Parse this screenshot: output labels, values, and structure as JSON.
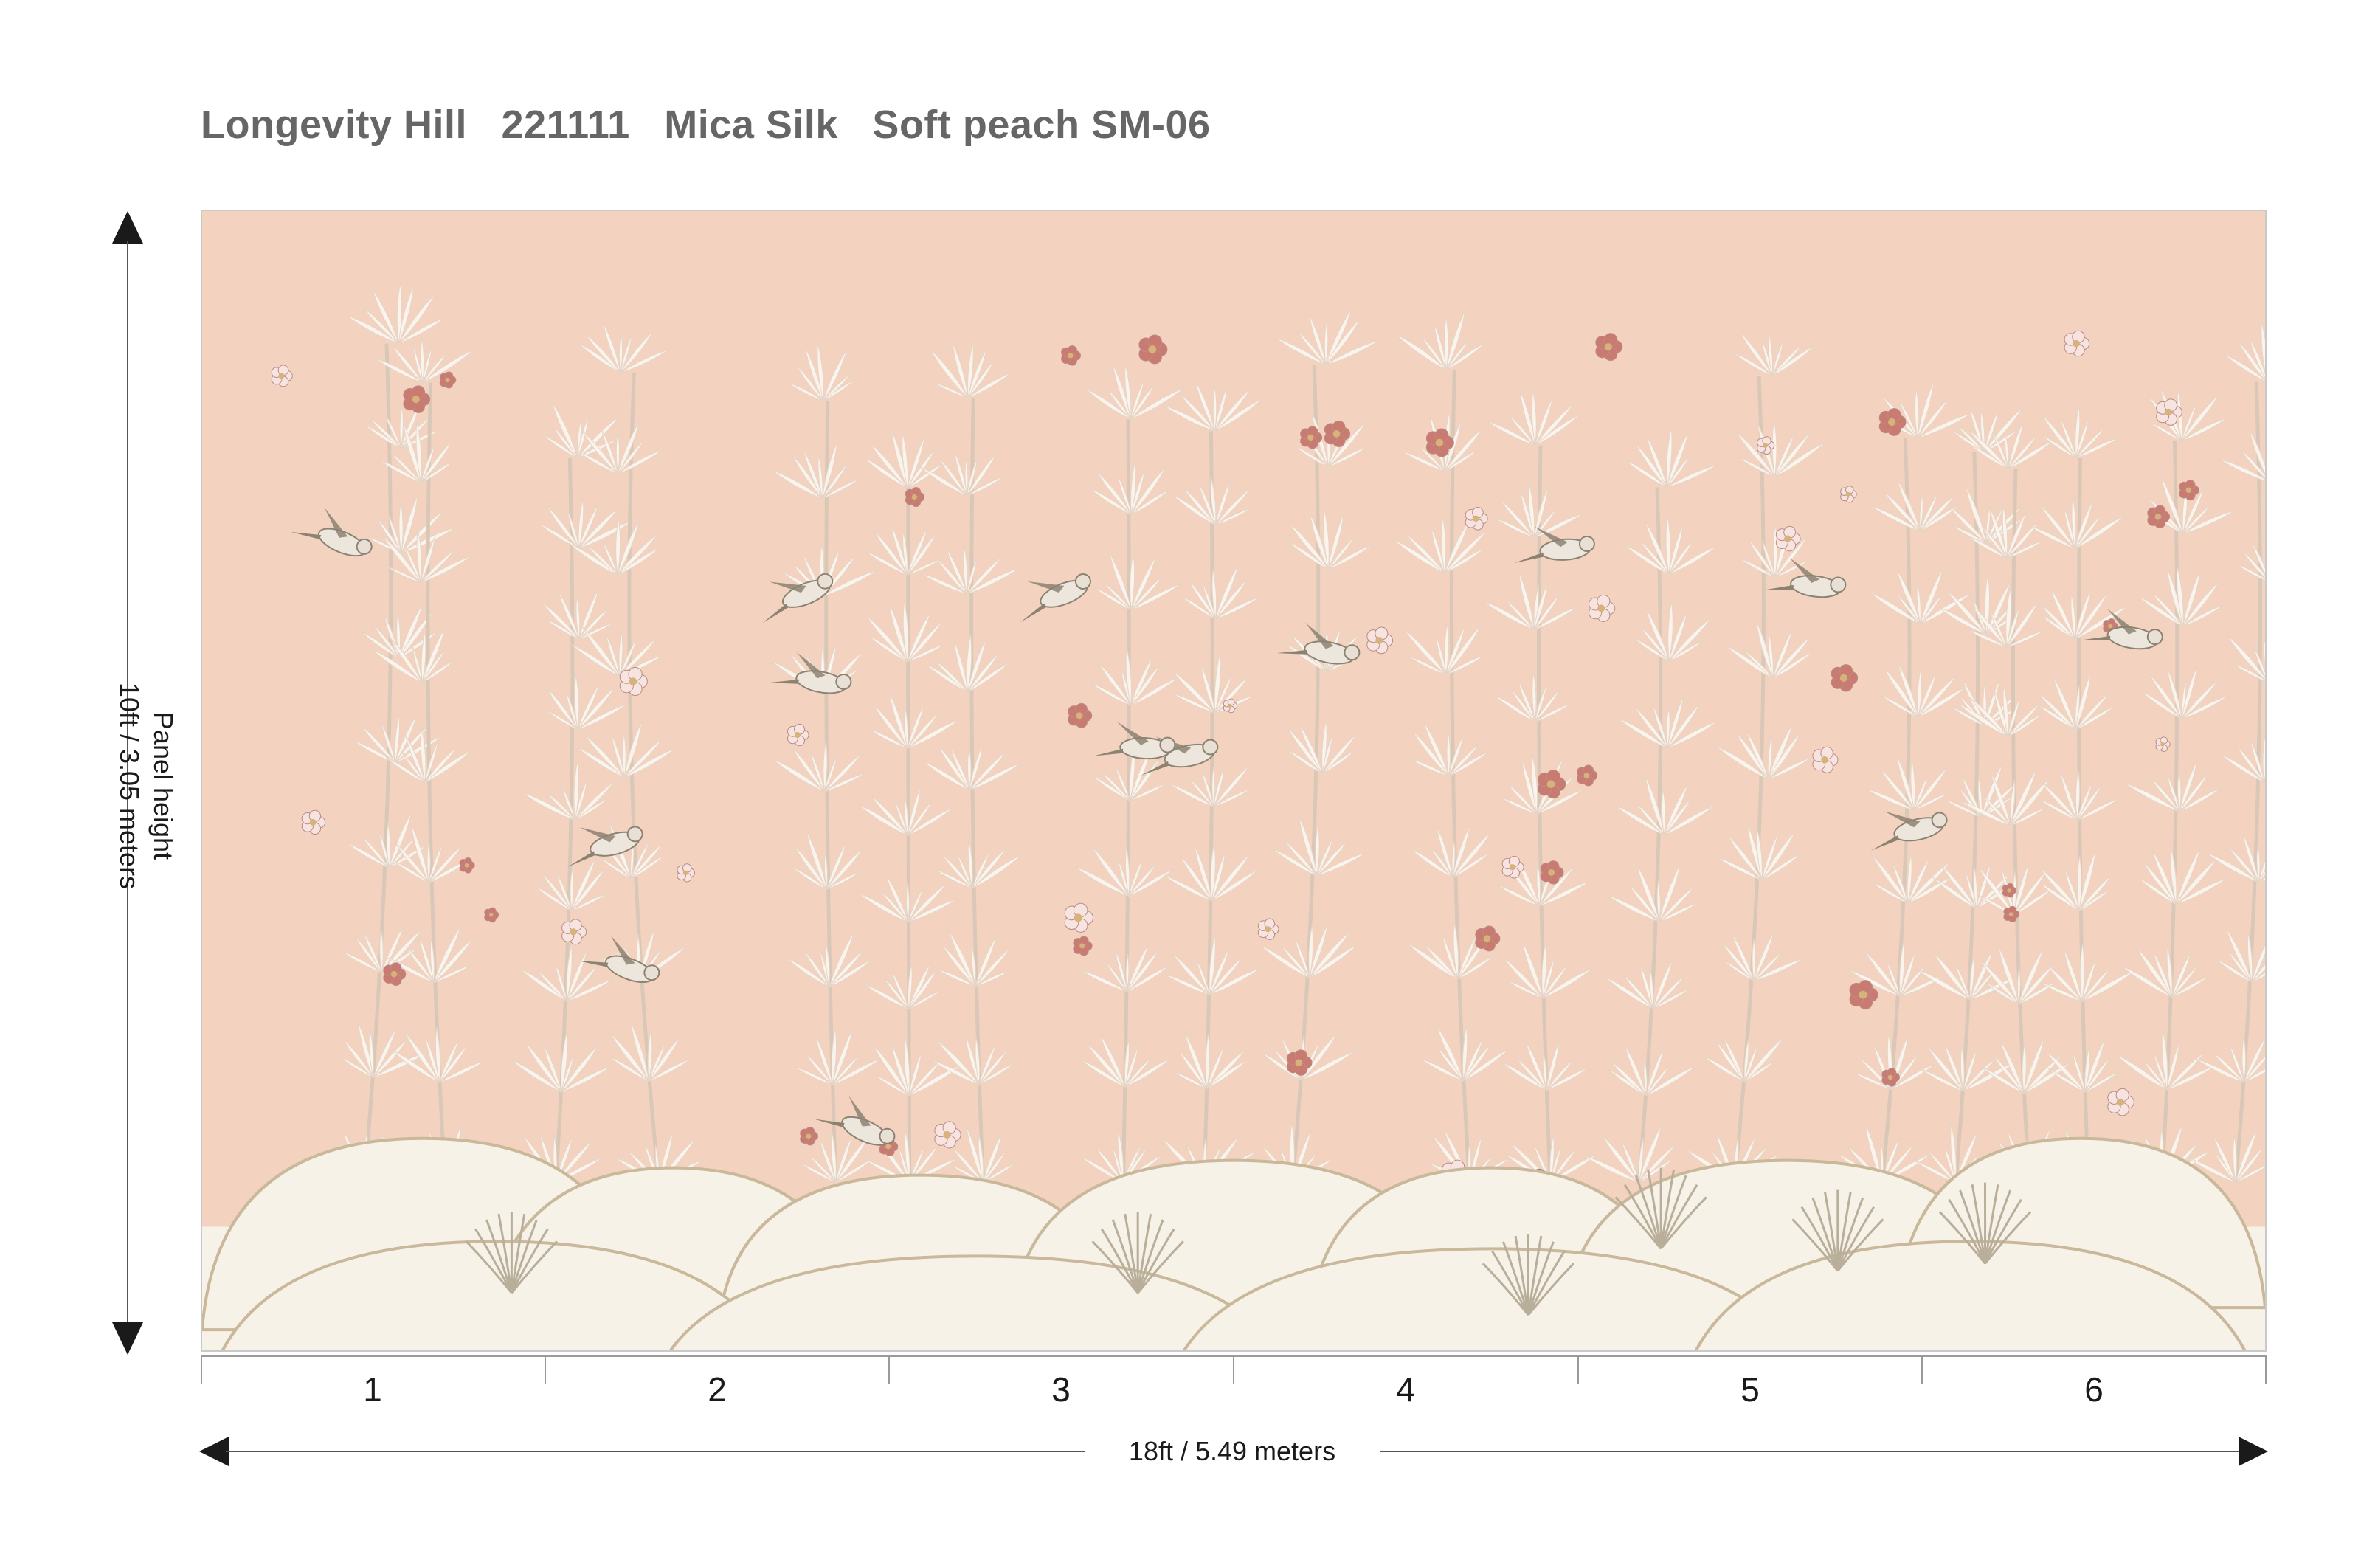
{
  "header": {
    "title": "Longevity Hill   221111   Mica Silk   Soft peach SM-06"
  },
  "dimensions": {
    "height_label_1": "Panel height",
    "height_label_2": "10ft / 3.05 meters",
    "width_label": "18ft / 5.49 meters"
  },
  "panels": [
    "1",
    "2",
    "3",
    "4",
    "5",
    "6"
  ],
  "colors": {
    "background": "#f3d2bf",
    "hills": "#f7f2e8",
    "hill_edge": "#c9b89a",
    "leaf": "#fbf6f0",
    "stem": "#d9c8b8",
    "blossom": "#c97b72",
    "bird": "#8c8272",
    "arrow": "#1a1a1a"
  }
}
